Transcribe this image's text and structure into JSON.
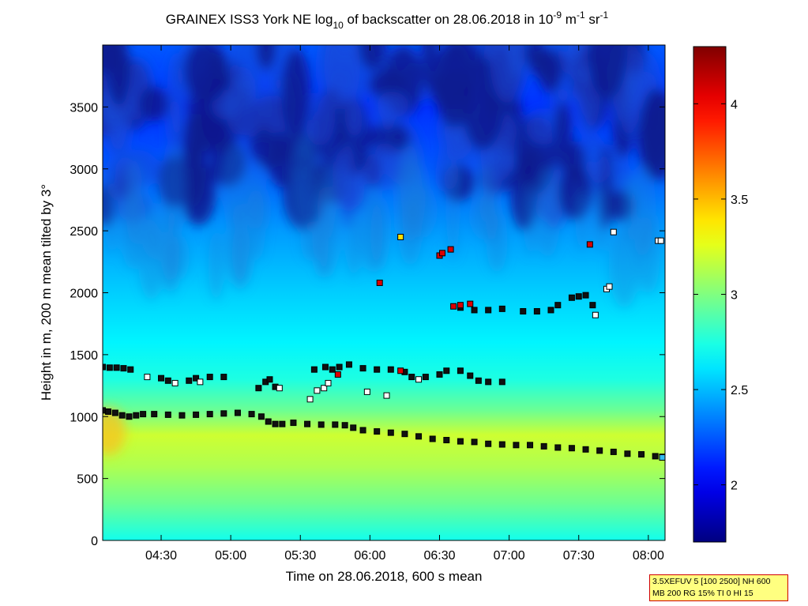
{
  "chart_data": {
    "type": "heatmap",
    "title": {
      "prefix": "GRAINEX ISS3 York NE log",
      "log_sub": "10",
      "middle": " of backscatter on 28.06.2018 in 10",
      "exp1": "-9",
      "unit1": " m",
      "exp2": "-1",
      "unit2": " sr",
      "exp3": "-1"
    },
    "xlabel": "Time on 28.06.2018, 600 s mean",
    "ylabel": "Height in m, 200 m mean tilted by 3°",
    "x_range_hours": [
      4.08,
      8.12
    ],
    "ylim": [
      0,
      4000
    ],
    "x_ticks": [
      {
        "value": 4.5,
        "label": "04:30"
      },
      {
        "value": 5.0,
        "label": "05:00"
      },
      {
        "value": 5.5,
        "label": "05:30"
      },
      {
        "value": 6.0,
        "label": "06:00"
      },
      {
        "value": 6.5,
        "label": "06:30"
      },
      {
        "value": 7.0,
        "label": "07:00"
      },
      {
        "value": 7.5,
        "label": "07:30"
      },
      {
        "value": 8.0,
        "label": "08:00"
      }
    ],
    "y_ticks": [
      {
        "value": 0,
        "label": "0"
      },
      {
        "value": 500,
        "label": "500"
      },
      {
        "value": 1000,
        "label": "1000"
      },
      {
        "value": 1500,
        "label": "1500"
      },
      {
        "value": 2000,
        "label": "2000"
      },
      {
        "value": 2500,
        "label": "2500"
      },
      {
        "value": 3000,
        "label": "3000"
      },
      {
        "value": 3500,
        "label": "3500"
      }
    ],
    "colorbar": {
      "range": [
        1.7,
        4.3
      ],
      "colormap": "jet",
      "ticks": [
        {
          "value": 2,
          "label": "2"
        },
        {
          "value": 2.5,
          "label": "2.5"
        },
        {
          "value": 3,
          "label": "3"
        },
        {
          "value": 3.5,
          "label": "3.5"
        },
        {
          "value": 4,
          "label": "4"
        }
      ]
    },
    "field_profile": [
      {
        "h": 0,
        "v": 2.72
      },
      {
        "h": 300,
        "v": 2.95
      },
      {
        "h": 600,
        "v": 3.12
      },
      {
        "h": 850,
        "v": 3.2
      },
      {
        "h": 1050,
        "v": 2.95
      },
      {
        "h": 1300,
        "v": 2.75
      },
      {
        "h": 1600,
        "v": 2.65
      },
      {
        "h": 2000,
        "v": 2.55
      },
      {
        "h": 2500,
        "v": 2.42
      },
      {
        "h": 3000,
        "v": 2.25
      },
      {
        "h": 3500,
        "v": 2.15
      },
      {
        "h": 4000,
        "v": 2.25
      }
    ],
    "series": [
      {
        "marker_color": "#111111",
        "points": [
          [
            4.08,
            1050
          ],
          [
            4.12,
            1040
          ],
          [
            4.17,
            1030
          ],
          [
            4.22,
            1010
          ],
          [
            4.27,
            1000
          ],
          [
            4.32,
            1010
          ],
          [
            4.37,
            1020
          ],
          [
            4.45,
            1020
          ],
          [
            4.55,
            1015
          ],
          [
            4.65,
            1010
          ],
          [
            4.75,
            1015
          ],
          [
            4.85,
            1020
          ],
          [
            4.95,
            1025
          ],
          [
            5.05,
            1030
          ],
          [
            5.15,
            1020
          ],
          [
            5.22,
            1000
          ],
          [
            5.27,
            960
          ],
          [
            5.32,
            940
          ],
          [
            5.37,
            940
          ],
          [
            5.45,
            950
          ],
          [
            5.55,
            940
          ],
          [
            5.65,
            935
          ],
          [
            5.75,
            935
          ],
          [
            5.82,
            930
          ],
          [
            5.88,
            910
          ],
          [
            5.95,
            890
          ],
          [
            6.05,
            880
          ],
          [
            6.15,
            870
          ],
          [
            6.25,
            860
          ],
          [
            6.35,
            840
          ],
          [
            6.45,
            820
          ],
          [
            6.55,
            810
          ],
          [
            6.65,
            800
          ],
          [
            6.75,
            795
          ],
          [
            6.85,
            780
          ],
          [
            6.95,
            775
          ],
          [
            7.05,
            770
          ],
          [
            7.15,
            770
          ],
          [
            7.25,
            760
          ],
          [
            7.35,
            750
          ],
          [
            7.45,
            745
          ],
          [
            7.55,
            735
          ],
          [
            7.65,
            725
          ],
          [
            7.75,
            715
          ],
          [
            7.85,
            700
          ],
          [
            7.95,
            695
          ],
          [
            8.05,
            680
          ],
          [
            8.1,
            675
          ]
        ]
      },
      {
        "marker_color": "#111111",
        "points": [
          [
            4.08,
            1400
          ],
          [
            4.13,
            1395
          ],
          [
            4.18,
            1395
          ],
          [
            4.23,
            1390
          ],
          [
            4.28,
            1380
          ],
          [
            4.5,
            1310
          ],
          [
            4.55,
            1290
          ],
          [
            4.7,
            1290
          ],
          [
            4.75,
            1310
          ],
          [
            4.85,
            1320
          ],
          [
            4.95,
            1320
          ],
          [
            5.2,
            1230
          ],
          [
            5.25,
            1280
          ],
          [
            5.28,
            1300
          ],
          [
            5.32,
            1240
          ],
          [
            5.6,
            1380
          ],
          [
            5.68,
            1400
          ],
          [
            5.73,
            1380
          ],
          [
            5.78,
            1400
          ],
          [
            5.85,
            1420
          ],
          [
            5.95,
            1390
          ],
          [
            6.05,
            1380
          ],
          [
            6.15,
            1380
          ],
          [
            6.25,
            1360
          ],
          [
            6.3,
            1320
          ],
          [
            6.4,
            1320
          ],
          [
            6.5,
            1340
          ],
          [
            6.55,
            1370
          ],
          [
            6.65,
            1370
          ],
          [
            6.72,
            1330
          ],
          [
            6.78,
            1290
          ],
          [
            6.85,
            1280
          ],
          [
            6.95,
            1280
          ],
          [
            6.65,
            1880
          ],
          [
            6.75,
            1860
          ],
          [
            6.85,
            1860
          ],
          [
            6.95,
            1870
          ],
          [
            7.1,
            1850
          ],
          [
            7.2,
            1850
          ],
          [
            7.3,
            1860
          ],
          [
            7.35,
            1900
          ],
          [
            7.45,
            1960
          ],
          [
            7.5,
            1970
          ],
          [
            7.55,
            1980
          ],
          [
            7.6,
            1900
          ]
        ]
      },
      {
        "marker_color": "#ffffff",
        "points": [
          [
            4.4,
            1320
          ],
          [
            4.6,
            1270
          ],
          [
            4.78,
            1280
          ],
          [
            5.35,
            1230
          ],
          [
            5.57,
            1140
          ],
          [
            5.62,
            1210
          ],
          [
            5.67,
            1230
          ],
          [
            5.7,
            1270
          ],
          [
            5.98,
            1200
          ],
          [
            6.12,
            1170
          ],
          [
            6.35,
            1300
          ],
          [
            7.62,
            1820
          ],
          [
            7.7,
            2030
          ],
          [
            7.72,
            2050
          ],
          [
            7.75,
            2490
          ],
          [
            8.07,
            2420
          ],
          [
            8.09,
            2420
          ]
        ]
      },
      {
        "marker_color": "#dd0000",
        "points": [
          [
            5.77,
            1340
          ],
          [
            6.07,
            2080
          ],
          [
            6.22,
            1370
          ],
          [
            6.5,
            2300
          ],
          [
            6.52,
            2320
          ],
          [
            6.58,
            2350
          ],
          [
            6.6,
            1890
          ],
          [
            6.65,
            1900
          ],
          [
            6.72,
            1910
          ],
          [
            7.58,
            2390
          ]
        ]
      },
      {
        "marker_color": "#ffe000",
        "points": [
          [
            6.22,
            2450
          ]
        ]
      },
      {
        "marker_color": "#33bbee",
        "points": [
          [
            8.1,
            670
          ]
        ]
      }
    ]
  },
  "params_box": {
    "line1": "3.5XEFUV 5 [100 2500] NH 600",
    "line2": "MB 200 RG 15% TI 0 HI 15"
  }
}
